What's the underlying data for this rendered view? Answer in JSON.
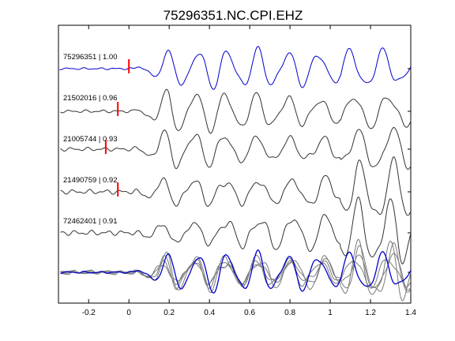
{
  "chart_data": {
    "type": "line",
    "title": "75296351.NC.CPI.EHZ",
    "xlabel": "",
    "ylabel": "",
    "xlim": [
      -0.35,
      1.4
    ],
    "xticks": [
      -0.2,
      0,
      0.2,
      0.4,
      0.6,
      0.8,
      1,
      1.2,
      1.4
    ],
    "xtick_labels": [
      "-0.2",
      "0",
      "0.2",
      "0.4",
      "0.6",
      "0.8",
      "1",
      "1.2",
      "1.4"
    ],
    "grid": false,
    "colors": {
      "reference": "#0000cc",
      "other": "#333333",
      "pick": "#ff0000",
      "stack_gray": "#7a7a7a"
    },
    "series": [
      {
        "name": "75296351 | 1.00",
        "pick_x": 0.0,
        "color": "#0000cc"
      },
      {
        "name": "21502016 | 0.96",
        "pick_x": -0.055,
        "color": "#333333"
      },
      {
        "name": "21005744 | 0.93",
        "pick_x": -0.115,
        "color": "#333333"
      },
      {
        "name": "21490759 | 0.92",
        "pick_x": -0.055,
        "color": "#333333"
      },
      {
        "name": "72462401 | 0.91",
        "pick_x": null,
        "color": "#333333"
      }
    ],
    "overlay": {
      "description": "",
      "color_reference": "#0000cc"
    }
  }
}
